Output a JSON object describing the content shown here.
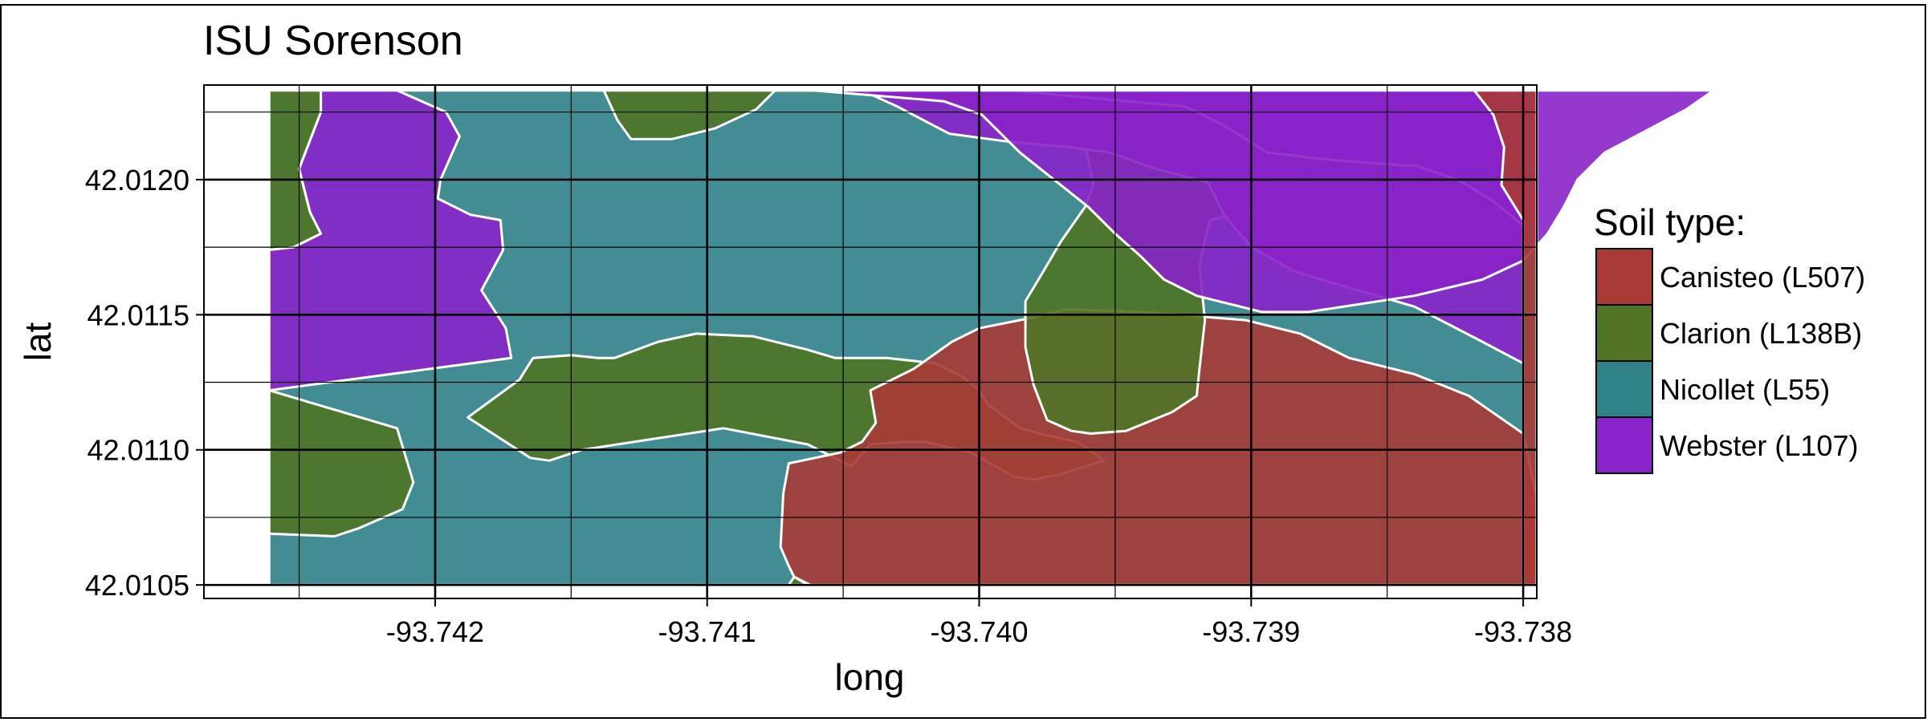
{
  "chart_data": {
    "type": "map",
    "title": "ISU Sorenson",
    "xlabel": "long",
    "ylabel": "lat",
    "xlim": [
      -93.74285,
      -93.73795
    ],
    "ylim": [
      42.01045,
      42.01235
    ],
    "x_ticks": [
      -93.742,
      -93.741,
      -93.74,
      -93.739,
      -93.738
    ],
    "x_tick_labels": [
      "-93.742",
      "-93.741",
      "-93.740",
      "-93.739",
      "-93.738"
    ],
    "y_ticks": [
      42.0105,
      42.011,
      42.0115,
      42.012
    ],
    "y_tick_labels": [
      "42.0105",
      "42.0110",
      "42.0115",
      "42.0120"
    ],
    "grid": true,
    "legend": {
      "title": "Soil type:",
      "position": "right",
      "items": [
        {
          "label": "Canisteo (L507)",
          "color": "#a93a36"
        },
        {
          "label": "Clarion (L138B)",
          "color": "#4f7424"
        },
        {
          "label": "Nicollet (L55)",
          "color": "#2d8187"
        },
        {
          "label": "Webster (L107)",
          "color": "#8a22c9"
        }
      ]
    },
    "colors": {
      "Canisteo (L507)": "#a93a36",
      "Clarion (L138B)": "#4f7424",
      "Nicollet (L55)": "#2d8187",
      "Webster (L107)": "#8a22c9"
    },
    "region_fill_opacity": 0.9,
    "border_color": "#ffffff",
    "background": "#ffffff",
    "grid_color": "#000000",
    "regions": [
      {
        "soil": "Nicollet (L55)",
        "coords": [
          [
            -93.74261,
            42.01233
          ],
          [
            -93.73795,
            42.01233
          ],
          [
            -93.73795,
            42.0105
          ],
          [
            -93.74261,
            42.0105
          ]
        ]
      },
      {
        "soil": "Clarion (L138B)",
        "coords": [
          [
            -93.74261,
            42.01233
          ],
          [
            -93.74242,
            42.01233
          ],
          [
            -93.74242,
            42.01225
          ],
          [
            -93.7425,
            42.01204
          ],
          [
            -93.74246,
            42.01188
          ],
          [
            -93.74242,
            42.0118
          ],
          [
            -93.74252,
            42.01175
          ],
          [
            -93.74261,
            42.01174
          ]
        ]
      },
      {
        "soil": "Webster (L107)",
        "coords": [
          [
            -93.74242,
            42.01233
          ],
          [
            -93.74214,
            42.01233
          ],
          [
            -93.74196,
            42.01225
          ],
          [
            -93.74191,
            42.01216
          ],
          [
            -93.74198,
            42.012
          ],
          [
            -93.74199,
            42.01193
          ],
          [
            -93.74187,
            42.01187
          ],
          [
            -93.74176,
            42.01185
          ],
          [
            -93.74175,
            42.01174
          ],
          [
            -93.74183,
            42.01159
          ],
          [
            -93.74174,
            42.01145
          ],
          [
            -93.74172,
            42.01134
          ],
          [
            -93.74261,
            42.01122
          ],
          [
            -93.74261,
            42.01174
          ],
          [
            -93.74252,
            42.01175
          ],
          [
            -93.74242,
            42.0118
          ],
          [
            -93.74246,
            42.01188
          ],
          [
            -93.7425,
            42.01204
          ],
          [
            -93.74242,
            42.01225
          ]
        ]
      },
      {
        "soil": "Clarion (L138B)",
        "coords": [
          [
            -93.74261,
            42.01122
          ],
          [
            -93.74214,
            42.01108
          ],
          [
            -93.74208,
            42.01088
          ],
          [
            -93.74212,
            42.01078
          ],
          [
            -93.74228,
            42.01071
          ],
          [
            -93.74237,
            42.01068
          ],
          [
            -93.74261,
            42.01069
          ]
        ]
      },
      {
        "soil": "Clarion (L138B)",
        "coords": [
          [
            -93.74188,
            42.01112
          ],
          [
            -93.74169,
            42.01126
          ],
          [
            -93.74164,
            42.01134
          ],
          [
            -93.7415,
            42.01135
          ],
          [
            -93.7414,
            42.01134
          ],
          [
            -93.74134,
            42.01134
          ],
          [
            -93.74118,
            42.0114
          ],
          [
            -93.74104,
            42.01143
          ],
          [
            -93.74083,
            42.01142
          ],
          [
            -93.74063,
            42.01137
          ],
          [
            -93.74053,
            42.01134
          ],
          [
            -93.74034,
            42.01134
          ],
          [
            -93.74016,
            42.01132
          ],
          [
            -93.74006,
            42.01127
          ],
          [
            -93.74,
            42.01122
          ],
          [
            -93.73997,
            42.01117
          ],
          [
            -93.73985,
            42.01108
          ],
          [
            -93.73978,
            42.01106
          ],
          [
            -93.73964,
            42.01103
          ],
          [
            -93.73954,
            42.01096
          ],
          [
            -93.7397,
            42.01091
          ],
          [
            -93.7398,
            42.01089
          ],
          [
            -93.73987,
            42.0109
          ],
          [
            -93.74003,
            42.01099
          ],
          [
            -93.7402,
            42.01103
          ],
          [
            -93.74027,
            42.01103
          ],
          [
            -93.7404,
            42.01102
          ],
          [
            -93.74047,
            42.01094
          ],
          [
            -93.74063,
            42.01102
          ],
          [
            -93.74094,
            42.01108
          ],
          [
            -93.74146,
            42.011
          ],
          [
            -93.74158,
            42.01096
          ],
          [
            -93.74165,
            42.01097
          ]
        ]
      },
      {
        "soil": "Canisteo (L507)",
        "coords": [
          [
            -93.7404,
            42.01122
          ],
          [
            -93.74024,
            42.0113
          ],
          [
            -93.7401,
            42.0114
          ],
          [
            -93.74,
            42.01145
          ],
          [
            -93.7398,
            42.01149
          ],
          [
            -93.73968,
            42.01152
          ],
          [
            -93.7394,
            42.01151
          ],
          [
            -93.73902,
            42.01148
          ],
          [
            -93.73882,
            42.01143
          ],
          [
            -93.73864,
            42.01134
          ],
          [
            -93.7384,
            42.01128
          ],
          [
            -93.7382,
            42.0112
          ],
          [
            -93.738,
            42.01106
          ],
          [
            -93.73795,
            42.01082
          ],
          [
            -93.73795,
            42.0105
          ],
          [
            -93.74062,
            42.0105
          ],
          [
            -93.74068,
            42.01053
          ],
          [
            -93.7407,
            42.01057
          ],
          [
            -93.74073,
            42.01064
          ],
          [
            -93.74072,
            42.01084
          ],
          [
            -93.7407,
            42.01095
          ],
          [
            -93.74051,
            42.01099
          ],
          [
            -93.74043,
            42.01103
          ],
          [
            -93.74038,
            42.0111
          ]
        ]
      },
      {
        "soil": "Clarion (L138B)",
        "coords": [
          [
            -93.74063,
            42.0105
          ],
          [
            -93.74068,
            42.01053
          ],
          [
            -93.7407,
            42.0105
          ]
        ]
      },
      {
        "soil": "Clarion (L138B)",
        "coords": [
          [
            -93.7399,
            42.01233
          ],
          [
            -93.73972,
            42.01233
          ],
          [
            -93.73963,
            42.01221
          ],
          [
            -93.7396,
            42.01208
          ],
          [
            -93.73958,
            42.01198
          ],
          [
            -93.73961,
            42.0119
          ],
          [
            -93.7397,
            42.01177
          ],
          [
            -93.73977,
            42.01165
          ],
          [
            -93.73983,
            42.01155
          ],
          [
            -93.73983,
            42.01138
          ],
          [
            -93.7398,
            42.01124
          ],
          [
            -93.73975,
            42.01111
          ],
          [
            -93.73966,
            42.01107
          ],
          [
            -93.73959,
            42.01106
          ],
          [
            -93.73946,
            42.01107
          ],
          [
            -93.73929,
            42.01114
          ],
          [
            -93.7392,
            42.0112
          ],
          [
            -93.73919,
            42.0113
          ],
          [
            -93.73917,
            42.01148
          ],
          [
            -93.73919,
            42.01168
          ],
          [
            -93.73917,
            42.01178
          ],
          [
            -93.73915,
            42.01185
          ],
          [
            -93.73897,
            42.0119
          ],
          [
            -93.7388,
            42.01198
          ],
          [
            -93.73877,
            42.01211
          ],
          [
            -93.7388,
            42.01224
          ],
          [
            -93.73893,
            42.01233
          ],
          [
            -93.73874,
            42.01233
          ]
        ]
      },
      {
        "soil": "Webster (L107)",
        "coords": [
          [
            -93.74133,
            42.01233
          ],
          [
            -93.74043,
            42.01233
          ],
          [
            -93.7403,
            42.01227
          ],
          [
            -93.74011,
            42.01217
          ],
          [
            -93.73989,
            42.01214
          ],
          [
            -93.73966,
            42.01212
          ],
          [
            -93.73952,
            42.0121
          ],
          [
            -93.73935,
            42.01204
          ],
          [
            -93.73916,
            42.01199
          ],
          [
            -93.7391,
            42.01187
          ],
          [
            -93.739,
            42.01175
          ],
          [
            -93.73884,
            42.01166
          ],
          [
            -93.73864,
            42.0116
          ],
          [
            -93.7384,
            42.01153
          ],
          [
            -93.73815,
            42.0114
          ],
          [
            -93.738,
            42.01132
          ],
          [
            -93.738,
            42.01233
          ]
        ]
      },
      {
        "soil": "Webster (L107)",
        "coords": [
          [
            -93.74141,
            42.01233
          ],
          [
            -93.74054,
            42.01233
          ],
          [
            -93.73989,
            42.01233
          ],
          [
            -93.73924,
            42.01227
          ],
          [
            -93.7391,
            42.0122
          ],
          [
            -93.73894,
            42.0121
          ],
          [
            -93.73868,
            42.01207
          ],
          [
            -93.73839,
            42.01205
          ],
          [
            -93.73824,
            42.012
          ],
          [
            -93.73811,
            42.01192
          ],
          [
            -93.738,
            42.01183
          ],
          [
            -93.738,
            42.01233
          ]
        ]
      },
      {
        "soil": "Webster (L107)",
        "coords": [
          [
            -93.74061,
            42.01233
          ],
          [
            -93.74013,
            42.01229
          ],
          [
            -93.73999,
            42.01224
          ],
          [
            -93.73985,
            42.0121
          ],
          [
            -93.7396,
            42.0119
          ],
          [
            -93.7395,
            42.0118
          ],
          [
            -93.73941,
            42.01172
          ],
          [
            -93.73932,
            42.01163
          ],
          [
            -93.7392,
            42.01157
          ],
          [
            -93.73896,
            42.01151
          ],
          [
            -93.73879,
            42.01151
          ],
          [
            -93.7384,
            42.01157
          ],
          [
            -93.73815,
            42.01163
          ],
          [
            -93.738,
            42.0117
          ],
          [
            -93.73791,
            42.0118
          ],
          [
            -93.73785,
            42.0119
          ],
          [
            -93.7378,
            42.012
          ],
          [
            -93.7377,
            42.0121
          ],
          [
            -93.73755,
            42.01218
          ],
          [
            -93.7374,
            42.01226
          ],
          [
            -93.7373,
            42.01233
          ]
        ]
      },
      {
        "soil": "Clarion (L138B)",
        "coords": [
          [
            -93.74138,
            42.01233
          ],
          [
            -93.74075,
            42.01233
          ],
          [
            -93.74082,
            42.01226
          ],
          [
            -93.74097,
            42.01219
          ],
          [
            -93.74113,
            42.01215
          ],
          [
            -93.74128,
            42.01215
          ],
          [
            -93.74133,
            42.01222
          ]
        ]
      },
      {
        "soil": "Canisteo (L507)",
        "coords": [
          [
            -93.73818,
            42.01233
          ],
          [
            -93.73795,
            42.01233
          ],
          [
            -93.73795,
            42.0105
          ],
          [
            -93.738,
            42.0105
          ],
          [
            -93.738,
            42.01185
          ],
          [
            -93.73808,
            42.01198
          ],
          [
            -93.73807,
            42.01212
          ],
          [
            -93.73811,
            42.01224
          ]
        ]
      }
    ]
  }
}
